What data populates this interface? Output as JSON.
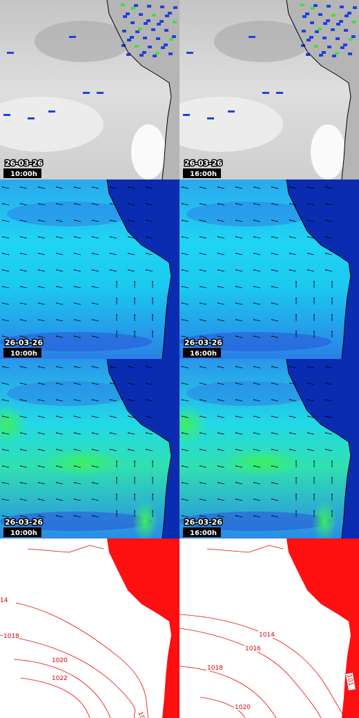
{
  "panels": [
    {
      "kind": "satellite",
      "date": "26-03-26",
      "time": "10:00h"
    },
    {
      "kind": "satellite",
      "date": "26-03-26",
      "time": "16:00h"
    },
    {
      "kind": "wind",
      "date": "26-03-26",
      "time": "10:00h"
    },
    {
      "kind": "wind",
      "date": "26-03-26",
      "time": "16:00h"
    },
    {
      "kind": "wave",
      "date": "26-03-26",
      "time": "10:00h"
    },
    {
      "kind": "wave",
      "date": "26-03-26",
      "time": "16:00h"
    }
  ],
  "pressure_maps": [
    {
      "labels": [
        "14",
        "1018",
        "1020",
        "1022",
        "101"
      ]
    },
    {
      "labels": [
        "1014",
        "1016",
        "1018",
        "1020",
        "101"
      ]
    }
  ]
}
